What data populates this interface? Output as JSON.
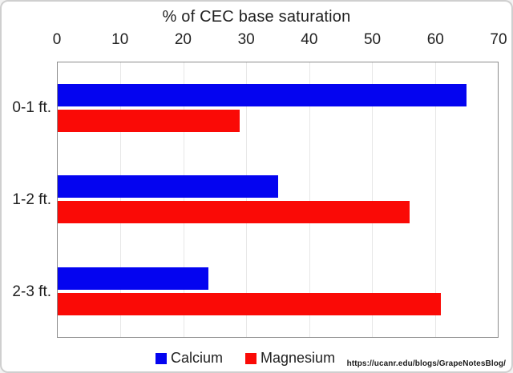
{
  "chart_data": {
    "type": "bar",
    "orientation": "horizontal",
    "title": "% of CEC base saturation",
    "categories": [
      "0-1 ft.",
      "1-2 ft.",
      "2-3 ft."
    ],
    "series": [
      {
        "name": "Calcium",
        "color": "#0404f0",
        "values": [
          65,
          35,
          24
        ]
      },
      {
        "name": "Magnesium",
        "color": "#fa0a06",
        "values": [
          29,
          56,
          61
        ]
      }
    ],
    "x_axis": {
      "position": "top",
      "min": 0,
      "max": 70,
      "ticks": [
        0,
        10,
        20,
        30,
        40,
        50,
        60,
        70
      ]
    },
    "legend_position": "bottom",
    "grid": true,
    "grid_color": "#e7e7e7",
    "axis_border_color": "#8c8c8c",
    "text_color": "#212121"
  },
  "footer": {
    "source_url": "https://ucanr.edu/blogs/GrapeNotesBlog/"
  }
}
